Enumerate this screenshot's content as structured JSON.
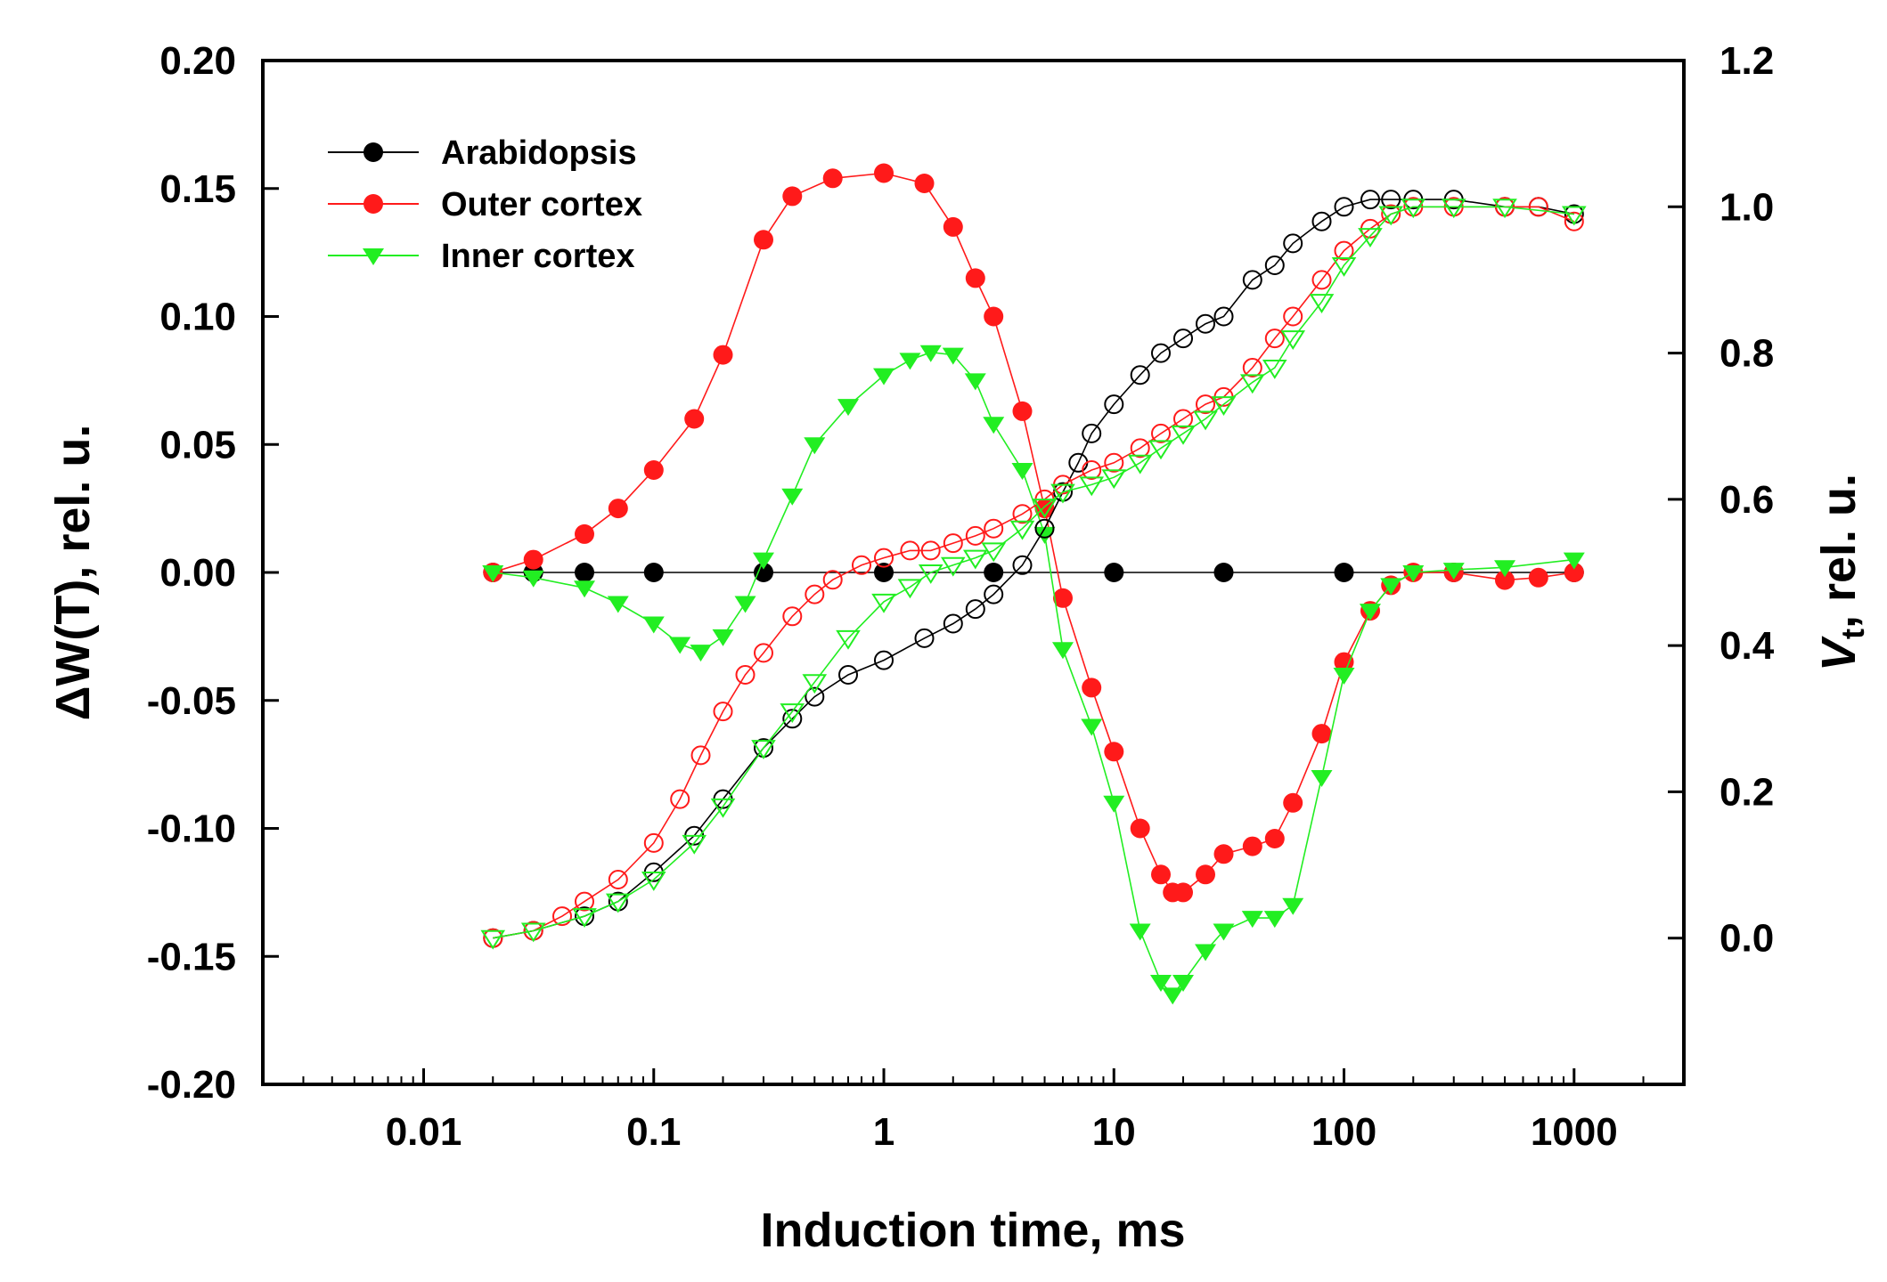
{
  "chart_data": {
    "type": "scatter",
    "xlabel": "Induction time, ms",
    "ylabel_left": "ΔW(T), rel. u.",
    "ylabel_right_main": "V",
    "ylabel_right_sub": "t",
    "ylabel_right_rest": ", rel. u.",
    "x_scale": "log",
    "xlim": [
      0.002,
      3000
    ],
    "x_ticks": [
      0.01,
      0.1,
      1,
      10,
      100,
      1000
    ],
    "x_tick_labels": [
      "0.01",
      "0.1",
      "1",
      "10",
      "100",
      "1000"
    ],
    "ylim_left": [
      -0.2,
      0.2
    ],
    "y_left_ticks": [
      -0.2,
      -0.15,
      -0.1,
      -0.05,
      0,
      0.05,
      0.1,
      0.15,
      0.2
    ],
    "y_left_tick_labels": [
      "-0.20",
      "-0.15",
      "-0.10",
      "-0.05",
      "0.00",
      "0.05",
      "0.10",
      "0.15",
      "0.20"
    ],
    "ylim_right": [
      -0.2,
      1.2
    ],
    "y_right_ticks": [
      0,
      0.2,
      0.4,
      0.6,
      0.8,
      1.0,
      1.2
    ],
    "y_right_tick_labels": [
      "0.0",
      "0.2",
      "0.4",
      "0.6",
      "0.8",
      "1.0",
      "1.2"
    ],
    "legend": [
      {
        "name": "Arabidopsis",
        "color": "#000000",
        "marker": "circle"
      },
      {
        "name": "Outer cortex",
        "color": "#ff1a1a",
        "marker": "circle"
      },
      {
        "name": "Inner cortex",
        "color": "#22ee22",
        "marker": "triangle-down"
      }
    ],
    "series": [
      {
        "name": "Arabidopsis",
        "axis": "left",
        "marker": "circle",
        "filled": true,
        "color": "#000000",
        "x": [
          0.02,
          0.03,
          0.05,
          0.1,
          0.3,
          1,
          3,
          10,
          30,
          100,
          300,
          1000
        ],
        "y": [
          0,
          0,
          0,
          0,
          0,
          0,
          0,
          0,
          0,
          0,
          0,
          0
        ]
      },
      {
        "name": "Outer cortex",
        "axis": "left",
        "marker": "circle",
        "filled": true,
        "color": "#ff1a1a",
        "x": [
          0.02,
          0.03,
          0.05,
          0.07,
          0.1,
          0.15,
          0.2,
          0.3,
          0.4,
          0.6,
          1,
          1.5,
          2,
          2.5,
          3,
          4,
          5,
          6,
          8,
          10,
          13,
          16,
          18,
          20,
          25,
          30,
          40,
          50,
          60,
          80,
          100,
          130,
          160,
          200,
          300,
          500,
          700,
          1000
        ],
        "y": [
          0,
          0.005,
          0.015,
          0.025,
          0.04,
          0.06,
          0.085,
          0.13,
          0.147,
          0.154,
          0.156,
          0.152,
          0.135,
          0.115,
          0.1,
          0.063,
          0.025,
          -0.01,
          -0.045,
          -0.07,
          -0.1,
          -0.118,
          -0.125,
          -0.125,
          -0.118,
          -0.11,
          -0.107,
          -0.104,
          -0.09,
          -0.063,
          -0.035,
          -0.015,
          -0.005,
          0,
          0,
          -0.003,
          -0.002,
          0
        ]
      },
      {
        "name": "Inner cortex",
        "axis": "left",
        "marker": "triangle",
        "filled": true,
        "color": "#22ee22",
        "x": [
          0.02,
          0.03,
          0.05,
          0.07,
          0.1,
          0.13,
          0.16,
          0.2,
          0.25,
          0.3,
          0.4,
          0.5,
          0.7,
          1,
          1.3,
          1.6,
          2,
          2.5,
          3,
          4,
          5,
          6,
          8,
          10,
          13,
          16,
          18,
          20,
          25,
          30,
          40,
          50,
          60,
          80,
          100,
          130,
          160,
          200,
          300,
          500,
          1000
        ],
        "y": [
          0,
          -0.002,
          -0.006,
          -0.012,
          -0.02,
          -0.028,
          -0.031,
          -0.025,
          -0.012,
          0.005,
          0.03,
          0.05,
          0.065,
          0.077,
          0.083,
          0.086,
          0.085,
          0.075,
          0.058,
          0.04,
          0.015,
          -0.03,
          -0.06,
          -0.09,
          -0.14,
          -0.16,
          -0.165,
          -0.16,
          -0.148,
          -0.14,
          -0.135,
          -0.135,
          -0.13,
          -0.08,
          -0.04,
          -0.015,
          -0.005,
          0,
          0.001,
          0.002,
          0.005
        ]
      },
      {
        "name": "Arabidopsis Vt",
        "axis": "right",
        "marker": "circle",
        "filled": false,
        "color": "#000000",
        "x": [
          0.02,
          0.03,
          0.05,
          0.07,
          0.1,
          0.15,
          0.2,
          0.3,
          0.4,
          0.5,
          0.7,
          1,
          1.5,
          2,
          2.5,
          3,
          4,
          5,
          6,
          7,
          8,
          10,
          13,
          16,
          20,
          25,
          30,
          40,
          50,
          60,
          80,
          100,
          130,
          160,
          200,
          300,
          500,
          700,
          1000
        ],
        "y": [
          0,
          0.01,
          0.03,
          0.05,
          0.09,
          0.14,
          0.19,
          0.26,
          0.3,
          0.33,
          0.36,
          0.38,
          0.41,
          0.43,
          0.45,
          0.47,
          0.51,
          0.56,
          0.61,
          0.65,
          0.69,
          0.73,
          0.77,
          0.8,
          0.82,
          0.84,
          0.85,
          0.9,
          0.92,
          0.95,
          0.98,
          1.0,
          1.01,
          1.01,
          1.01,
          1.01,
          1.0,
          1.0,
          0.99
        ]
      },
      {
        "name": "Outer cortex Vt",
        "axis": "right",
        "marker": "circle",
        "filled": false,
        "color": "#ff1a1a",
        "x": [
          0.02,
          0.03,
          0.04,
          0.05,
          0.07,
          0.1,
          0.13,
          0.16,
          0.2,
          0.25,
          0.3,
          0.4,
          0.5,
          0.6,
          0.8,
          1,
          1.3,
          1.6,
          2,
          2.5,
          3,
          4,
          5,
          6,
          8,
          10,
          13,
          16,
          20,
          25,
          30,
          40,
          50,
          60,
          80,
          100,
          130,
          160,
          200,
          300,
          500,
          700,
          1000
        ],
        "y": [
          0,
          0.01,
          0.03,
          0.05,
          0.08,
          0.13,
          0.19,
          0.25,
          0.31,
          0.36,
          0.39,
          0.44,
          0.47,
          0.49,
          0.51,
          0.52,
          0.53,
          0.53,
          0.54,
          0.55,
          0.56,
          0.58,
          0.6,
          0.62,
          0.64,
          0.65,
          0.67,
          0.69,
          0.71,
          0.73,
          0.74,
          0.78,
          0.82,
          0.85,
          0.9,
          0.94,
          0.97,
          0.99,
          1.0,
          1.0,
          1.0,
          1.0,
          0.98
        ]
      },
      {
        "name": "Inner cortex Vt",
        "axis": "right",
        "marker": "triangle",
        "filled": false,
        "color": "#22ee22",
        "x": [
          0.02,
          0.03,
          0.05,
          0.07,
          0.1,
          0.15,
          0.2,
          0.3,
          0.4,
          0.5,
          0.7,
          1,
          1.3,
          1.6,
          2,
          2.5,
          3,
          4,
          5,
          6,
          8,
          10,
          13,
          16,
          20,
          25,
          30,
          40,
          50,
          60,
          80,
          100,
          130,
          160,
          200,
          300,
          500,
          1000
        ],
        "y": [
          0,
          0.01,
          0.03,
          0.05,
          0.08,
          0.13,
          0.18,
          0.26,
          0.31,
          0.35,
          0.41,
          0.46,
          0.48,
          0.5,
          0.51,
          0.52,
          0.53,
          0.56,
          0.59,
          0.61,
          0.62,
          0.63,
          0.65,
          0.67,
          0.69,
          0.71,
          0.73,
          0.76,
          0.78,
          0.82,
          0.87,
          0.92,
          0.96,
          0.99,
          1.0,
          1.0,
          1.0,
          0.99
        ]
      }
    ]
  }
}
